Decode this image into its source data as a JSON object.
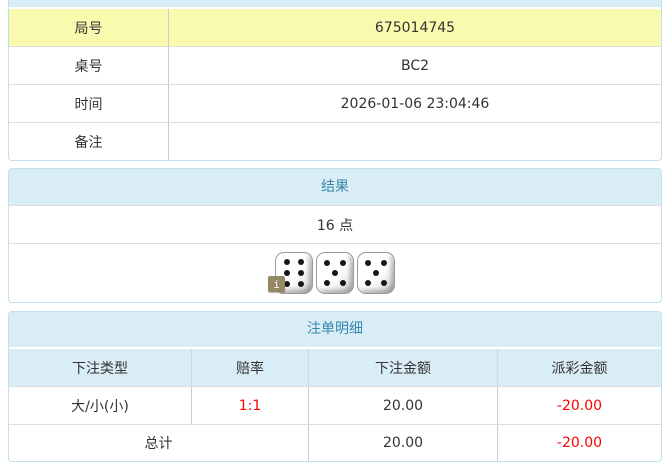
{
  "colors": {
    "panel-border": "#bfe1ed",
    "header-bg": "#d9edf7",
    "header-text": "#3a87ad",
    "highlight-row": "#fafaae",
    "row-border": "#dddddd",
    "col-border": "#cccccc",
    "text": "#333333",
    "negative": "#ff0000",
    "badge-bg": "#8d7f57"
  },
  "info_panel": {
    "rows": [
      {
        "label": "局号",
        "value": "675014745"
      },
      {
        "label": "桌号",
        "value": "BC2"
      },
      {
        "label": "时间",
        "value": "2026-01-06 23:04:46"
      },
      {
        "label": "备注",
        "value": ""
      }
    ]
  },
  "result_panel": {
    "title": "结果",
    "points": "16 点",
    "dice": [
      6,
      5,
      5
    ],
    "info_badge": "i"
  },
  "bet_panel": {
    "title": "注单明细",
    "columns": [
      "下注类型",
      "赔率",
      "下注金额",
      "派彩金额"
    ],
    "rows": [
      {
        "bet_type": "大/小(小)",
        "odds": "1:1",
        "bet_amount": "20.00",
        "payout": "-20.00"
      }
    ],
    "total": {
      "label": "总计",
      "bet_amount": "20.00",
      "payout": "-20.00"
    }
  }
}
